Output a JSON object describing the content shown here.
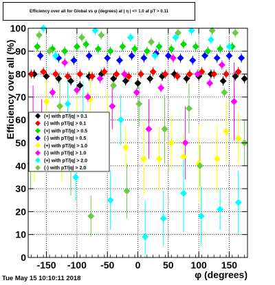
{
  "chart_data": {
    "type": "scatter",
    "title": "Efficiency over all for Global vs φ (degrees) at | η | <= 1.0 at pT > 0.11",
    "ylabel": "Efficiency over all (%)",
    "xlabel": "φ (degrees)",
    "xlim": [
      -180,
      180
    ],
    "ylim": [
      0,
      100
    ],
    "xticks": [
      "-150",
      "-100",
      "-50",
      "0",
      "50",
      "100",
      "150"
    ],
    "yticks": [
      "0",
      "10",
      "20",
      "30",
      "40",
      "50",
      "60",
      "70",
      "80",
      "90",
      "100"
    ],
    "grid": true,
    "legend_position": "middle-left",
    "series": [
      {
        "name": "(+) with pT/|q| > 0.1",
        "color": "#000000",
        "marker": "diamond",
        "x": [
          -170,
          -150,
          -130,
          -110,
          -95,
          -80,
          -60,
          -40,
          -20,
          0,
          20,
          40,
          60,
          80,
          100,
          120,
          140,
          160,
          175
        ],
        "y": [
          80,
          79,
          78,
          77,
          75,
          79,
          80,
          78,
          77,
          76,
          78,
          79,
          80,
          78,
          79,
          80,
          77,
          79,
          78
        ]
      },
      {
        "name": "(-) with pT/|q| > 0.1",
        "color": "#ff0000",
        "marker": "diamond",
        "x": [
          -175,
          -155,
          -135,
          -115,
          -95,
          -75,
          -55,
          -35,
          -15,
          5,
          25,
          45,
          65,
          85,
          105,
          125,
          145,
          165
        ],
        "y": [
          80,
          81,
          80,
          79,
          80,
          79,
          81,
          80,
          79,
          80,
          81,
          80,
          79,
          80,
          81,
          80,
          80,
          81
        ]
      },
      {
        "name": "(+) with pT/|q| > 0.5",
        "color": "#00dd00",
        "marker": "diamond",
        "x": [
          -165,
          -140,
          -120,
          -100,
          -85,
          -65,
          -45,
          -25,
          -5,
          15,
          35,
          55,
          75,
          95,
          115,
          135,
          155
        ],
        "y": [
          92,
          91,
          90,
          92,
          93,
          91,
          90,
          92,
          91,
          90,
          92,
          91,
          93,
          92,
          90,
          91,
          92
        ]
      },
      {
        "name": "(-) with pT/|q| > 0.5",
        "color": "#0000ff",
        "marker": "diamond",
        "x": [
          -160,
          -130,
          -105,
          -80,
          -50,
          -30,
          -10,
          10,
          30,
          50,
          70,
          90,
          110,
          130,
          150,
          170
        ],
        "y": [
          88,
          87,
          86,
          88,
          87,
          86,
          88,
          87,
          89,
          88,
          87,
          86,
          88,
          87,
          88,
          87
        ]
      },
      {
        "name": "(+) with pT/|q| > 1.0",
        "color": "#ffff00",
        "marker": "diamond",
        "x": [
          -170,
          -150,
          -125,
          -100,
          -78,
          -50,
          -20,
          10,
          35,
          55,
          75,
          100,
          130,
          145,
          165
        ],
        "y": [
          45,
          68,
          50,
          58,
          69,
          62,
          48,
          43,
          43,
          50,
          44,
          41,
          43,
          55,
          52
        ]
      },
      {
        "name": "(-) with pT/|q| > 1.0",
        "color": "#ff00ff",
        "marker": "diamond",
        "x": [
          -172,
          -158,
          -140,
          -120,
          -100,
          -82,
          -62,
          -42,
          -22,
          -2,
          18,
          38,
          58,
          78,
          98,
          118,
          138,
          158
        ],
        "y": [
          60,
          56,
          72,
          85,
          73,
          70,
          78,
          66,
          80,
          72,
          56,
          74,
          87,
          50,
          80,
          76,
          84,
          68
        ]
      },
      {
        "name": "(+) with pT/|q| > 2.0",
        "color": "#00ffff",
        "marker": "diamond",
        "x": [
          -168,
          -155,
          -135,
          -115,
          -102,
          -90,
          -70,
          -45,
          -28,
          -12,
          12,
          28,
          42,
          62,
          75,
          88,
          104,
          120,
          135,
          150,
          165
        ],
        "y": [
          48,
          100,
          88,
          67,
          35,
          60,
          99,
          25,
          60,
          96,
          9,
          88,
          17,
          96,
          28,
          99,
          18,
          95,
          21,
          92,
          24
        ]
      },
      {
        "name": "(-) with pT/|q| > 2.0",
        "color": "#66cc44",
        "marker": "diamond",
        "x": [
          -176,
          -162,
          -145,
          -128,
          -110,
          -92,
          -77,
          -60,
          -40,
          -18,
          2,
          22,
          44,
          66,
          84,
          102,
          122,
          142,
          160,
          175
        ],
        "y": [
          41,
          97,
          90,
          66,
          40,
          96,
          18,
          97,
          75,
          29,
          67,
          94,
          56,
          98,
          65,
          40,
          99,
          72,
          98,
          50
        ]
      }
    ]
  },
  "timestamp": "Tue May 15 10:10:11 2018"
}
